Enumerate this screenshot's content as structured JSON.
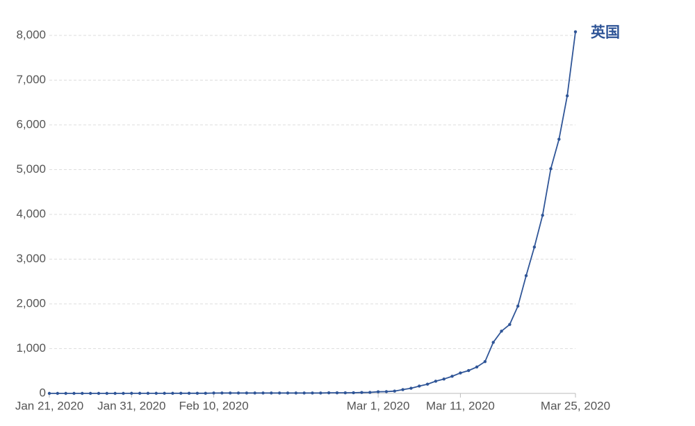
{
  "chart_data": {
    "type": "line",
    "categories": [
      "Jan 21, 2020",
      null,
      null,
      null,
      null,
      null,
      null,
      null,
      null,
      null,
      "Jan 31, 2020",
      null,
      null,
      null,
      null,
      null,
      null,
      null,
      null,
      null,
      "Feb 10, 2020",
      null,
      null,
      null,
      null,
      null,
      null,
      null,
      null,
      null,
      null,
      null,
      null,
      null,
      null,
      null,
      null,
      null,
      null,
      null,
      "Mar 1, 2020",
      null,
      null,
      null,
      null,
      null,
      null,
      null,
      null,
      null,
      "Mar 11, 2020",
      null,
      null,
      null,
      null,
      null,
      null,
      null,
      null,
      null,
      null,
      null,
      null,
      null,
      "Mar 25, 2020"
    ],
    "series": [
      {
        "name": "英国",
        "color": "#2f5597",
        "values": [
          0,
          0,
          0,
          0,
          0,
          0,
          0,
          0,
          0,
          0,
          2,
          2,
          2,
          2,
          2,
          2,
          3,
          3,
          3,
          3,
          8,
          9,
          9,
          9,
          9,
          9,
          9,
          9,
          9,
          9,
          9,
          9,
          9,
          9,
          13,
          13,
          13,
          15,
          20,
          23,
          36,
          40,
          51,
          85,
          115,
          163,
          206,
          273,
          321,
          382,
          456,
          510,
          590,
          710,
          1140,
          1390,
          1540,
          1950,
          2630,
          3270,
          3980,
          5020,
          5680,
          6650,
          8080
        ]
      }
    ],
    "ylim": [
      0,
      8000
    ],
    "yticks": [
      0,
      {
        "value": 1000,
        "label": "1,000"
      },
      {
        "value": 2000,
        "label": "2,000"
      },
      {
        "value": 3000,
        "label": "3,000"
      },
      {
        "value": 4000,
        "label": "4,000"
      },
      {
        "value": 5000,
        "label": "5,000"
      },
      {
        "value": 6000,
        "label": "6,000"
      },
      {
        "value": 7000,
        "label": "7,000"
      },
      {
        "value": 8000,
        "label": "8,000"
      }
    ],
    "grid": true
  }
}
